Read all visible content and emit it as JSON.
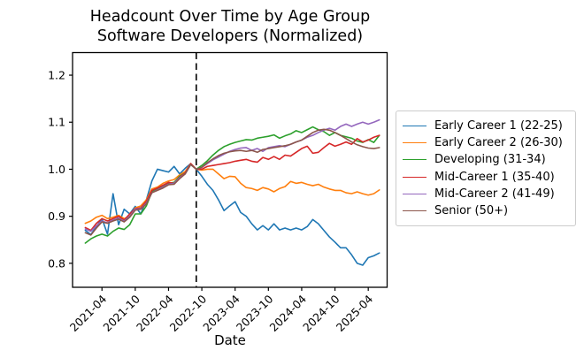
{
  "chart_data": {
    "type": "line",
    "title_line1": "Headcount Over Time by Age Group",
    "title_line2": "Software Developers (Normalized)",
    "xlabel": "Date",
    "grid": false,
    "legend_position": "outside-right",
    "x_start_month": "2021-01",
    "x_end_month": "2025-06",
    "x_tick_labels": [
      "2021-04",
      "2021-10",
      "2022-04",
      "2022-10",
      "2023-04",
      "2023-10",
      "2024-04",
      "2024-10",
      "2025-04"
    ],
    "x_tick_month_indices": [
      3,
      9,
      15,
      21,
      27,
      33,
      39,
      45,
      51
    ],
    "y_tick_labels": [
      "0.8",
      "0.9",
      "1.0",
      "1.1",
      "1.2"
    ],
    "y_tick_values": [
      0.8,
      0.9,
      1.0,
      1.1,
      1.2
    ],
    "ylim": [
      0.749,
      1.248
    ],
    "xlim_month_indices": [
      -2.3,
      54.4
    ],
    "vline_month": "2022-09",
    "vline_month_index": 20,
    "vline_style": "dashed-black",
    "series": [
      {
        "name": "Early Career 1 (22-25)",
        "color": "#1f77b4",
        "values": [
          0.87,
          0.861,
          0.878,
          0.895,
          0.862,
          0.948,
          0.882,
          0.915,
          0.905,
          0.921,
          0.905,
          0.935,
          0.975,
          1.0,
          0.997,
          0.994,
          1.006,
          0.99,
          1.002,
          1.012,
          1.0,
          0.985,
          0.968,
          0.955,
          0.935,
          0.912,
          0.922,
          0.931,
          0.908,
          0.9,
          0.884,
          0.871,
          0.88,
          0.871,
          0.884,
          0.871,
          0.875,
          0.871,
          0.875,
          0.871,
          0.878,
          0.893,
          0.884,
          0.87,
          0.856,
          0.845,
          0.833,
          0.833,
          0.818,
          0.8,
          0.796,
          0.812,
          0.816,
          0.822
        ]
      },
      {
        "name": "Early Career 2 (26-30)",
        "color": "#ff7f0e",
        "values": [
          0.885,
          0.89,
          0.898,
          0.902,
          0.895,
          0.898,
          0.902,
          0.895,
          0.9,
          0.918,
          0.922,
          0.935,
          0.958,
          0.962,
          0.97,
          0.975,
          0.978,
          0.988,
          0.995,
          1.012,
          1.0,
          0.998,
          1.0,
          1.0,
          0.99,
          0.98,
          0.985,
          0.984,
          0.97,
          0.961,
          0.959,
          0.955,
          0.961,
          0.958,
          0.952,
          0.959,
          0.963,
          0.974,
          0.97,
          0.972,
          0.968,
          0.965,
          0.968,
          0.962,
          0.958,
          0.955,
          0.955,
          0.95,
          0.948,
          0.952,
          0.948,
          0.945,
          0.948,
          0.956
        ]
      },
      {
        "name": "Developing (31-34)",
        "color": "#2ca02c",
        "values": [
          0.843,
          0.852,
          0.858,
          0.862,
          0.858,
          0.868,
          0.875,
          0.872,
          0.882,
          0.905,
          0.905,
          0.922,
          0.952,
          0.958,
          0.963,
          0.97,
          0.972,
          0.985,
          0.992,
          1.01,
          1.0,
          1.008,
          1.018,
          1.03,
          1.04,
          1.048,
          1.053,
          1.057,
          1.06,
          1.063,
          1.062,
          1.066,
          1.068,
          1.07,
          1.073,
          1.066,
          1.071,
          1.075,
          1.082,
          1.078,
          1.084,
          1.09,
          1.084,
          1.08,
          1.072,
          1.078,
          1.072,
          1.069,
          1.066,
          1.06,
          1.057,
          1.063,
          1.057,
          1.072
        ]
      },
      {
        "name": "Mid-Career 1 (35-40)",
        "color": "#d62728",
        "values": [
          0.876,
          0.87,
          0.885,
          0.895,
          0.89,
          0.895,
          0.9,
          0.892,
          0.905,
          0.916,
          0.918,
          0.932,
          0.955,
          0.96,
          0.966,
          0.972,
          0.97,
          0.983,
          0.992,
          1.012,
          1.0,
          1.0,
          1.006,
          1.008,
          1.01,
          1.012,
          1.014,
          1.017,
          1.019,
          1.021,
          1.017,
          1.015,
          1.025,
          1.021,
          1.027,
          1.021,
          1.03,
          1.028,
          1.036,
          1.044,
          1.049,
          1.034,
          1.036,
          1.046,
          1.055,
          1.049,
          1.053,
          1.058,
          1.053,
          1.065,
          1.058,
          1.062,
          1.068,
          1.072
        ]
      },
      {
        "name": "Mid-Career 2 (41-49)",
        "color": "#9467bd",
        "values": [
          0.873,
          0.868,
          0.88,
          0.89,
          0.886,
          0.892,
          0.896,
          0.89,
          0.9,
          0.915,
          0.916,
          0.928,
          0.95,
          0.956,
          0.962,
          0.968,
          0.97,
          0.982,
          0.99,
          1.01,
          1.0,
          1.004,
          1.012,
          1.02,
          1.026,
          1.032,
          1.038,
          1.042,
          1.045,
          1.046,
          1.04,
          1.044,
          1.038,
          1.046,
          1.048,
          1.05,
          1.048,
          1.053,
          1.058,
          1.062,
          1.068,
          1.072,
          1.078,
          1.083,
          1.087,
          1.083,
          1.091,
          1.096,
          1.091,
          1.096,
          1.1,
          1.096,
          1.1,
          1.105
        ]
      },
      {
        "name": "Senior (50+)",
        "color": "#8c564b",
        "values": [
          0.865,
          0.86,
          0.875,
          0.888,
          0.885,
          0.89,
          0.894,
          0.888,
          0.898,
          0.913,
          0.915,
          0.926,
          0.95,
          0.955,
          0.96,
          0.967,
          0.968,
          0.98,
          0.99,
          1.01,
          1.0,
          1.004,
          1.014,
          1.022,
          1.029,
          1.034,
          1.037,
          1.039,
          1.04,
          1.038,
          1.04,
          1.036,
          1.042,
          1.044,
          1.046,
          1.048,
          1.05,
          1.053,
          1.058,
          1.062,
          1.07,
          1.078,
          1.083,
          1.085,
          1.083,
          1.078,
          1.072,
          1.065,
          1.058,
          1.052,
          1.048,
          1.045,
          1.044,
          1.046
        ]
      }
    ]
  }
}
